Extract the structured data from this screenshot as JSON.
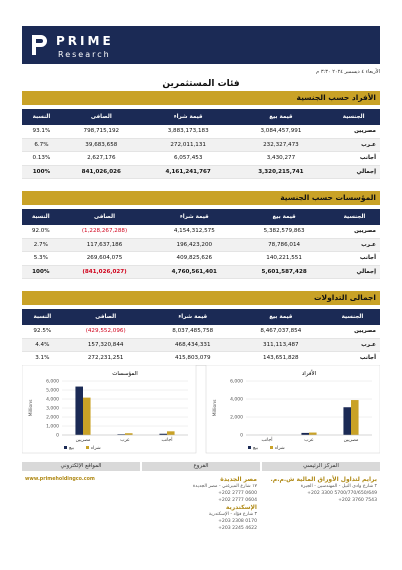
{
  "header": {
    "brand": "PRIME",
    "sub": "Research",
    "date": "الأربعاء ٤ ديسمبر ٢٠٢٤ ٣:٣٠ م"
  },
  "title": "فئات المستثمرين",
  "sections": [
    {
      "title": "الأفراد حسب الجنسية",
      "columns": [
        "الجنسية",
        "قيمة بيع",
        "قيمة شراء",
        "الصافى",
        "النسبة"
      ],
      "rows": [
        [
          "مصريين",
          "3,084,457,991",
          "3,883,173,183",
          "798,715,192",
          "93.1%"
        ],
        [
          "عـرب",
          "232,327,473",
          "272,011,131",
          "39,683,658",
          "6.7%"
        ],
        [
          "أجانب",
          "3,430,277",
          "6,057,453",
          "2,627,176",
          "0.13%"
        ],
        [
          "إجمالي",
          "3,320,215,741",
          "4,161,241,767",
          "841,026,026",
          "100%"
        ]
      ]
    },
    {
      "title": "المؤسسات حسب الجنسية",
      "columns": [
        "الجنسية",
        "قيمة بيع",
        "قيمة شراء",
        "الصافى",
        "النسبة"
      ],
      "rows": [
        [
          "مصريين",
          "5,382,579,863",
          "4,154,312,575",
          "(1,228,267,288)",
          "92.0%"
        ],
        [
          "عـرب",
          "78,786,014",
          "196,423,200",
          "117,637,186",
          "2.7%"
        ],
        [
          "أجانب",
          "140,221,551",
          "409,825,626",
          "269,604,075",
          "5.3%"
        ],
        [
          "إجمالي",
          "5,601,587,428",
          "4,760,561,401",
          "(841,026,027)",
          "100%"
        ]
      ]
    },
    {
      "title": "اجمالى التداولات",
      "columns": [
        "الجنسية",
        "قيمة بيع",
        "قيمة شراء",
        "الصافى",
        "النسبة"
      ],
      "rows": [
        [
          "مصريين",
          "8,467,037,854",
          "8,037,485,758",
          "(429,552,096)",
          "92.5%"
        ],
        [
          "عـرب",
          "311,113,487",
          "468,434,331",
          "157,320,844",
          "4.4%"
        ],
        [
          "أجانب",
          "143,651,828",
          "415,803,079",
          "272,231,251",
          "3.1%"
        ]
      ]
    }
  ],
  "charts": [
    {
      "type": "bar",
      "title": "المؤسسات",
      "y_label": "Millions",
      "categories": [
        "مصريين",
        "عرب",
        "أجانب"
      ],
      "series": [
        {
          "name": "بيع",
          "color": "#1b2a55",
          "values": [
            5382.58,
            78.79,
            140.22
          ]
        },
        {
          "name": "شراء",
          "color": "#c9a227",
          "values": [
            4154.31,
            196.42,
            409.83
          ]
        }
      ],
      "ylim": [
        0,
        6000
      ],
      "yticks": [
        0,
        {
          "value": 1000,
          "label": "1,000"
        },
        {
          "value": 2000,
          "label": "2,000"
        },
        {
          "value": 3000,
          "label": "3,000"
        },
        {
          "value": 4000,
          "label": "4,000"
        },
        {
          "value": 5000,
          "label": "5,000"
        },
        {
          "value": 6000,
          "label": "6,000"
        }
      ],
      "grid": true
    },
    {
      "type": "bar",
      "title": "الأفراد",
      "y_label": "Millions",
      "categories": [
        "أجانب",
        "عرب",
        "مصريين"
      ],
      "series": [
        {
          "name": "بيع",
          "color": "#1b2a55",
          "values": [
            3.43,
            232.33,
            3084.46
          ]
        },
        {
          "name": "شراء",
          "color": "#c9a227",
          "values": [
            6.06,
            272.01,
            3883.17
          ]
        }
      ],
      "ylim": [
        0,
        6000
      ],
      "yticks": [
        0,
        {
          "value": 2000,
          "label": "2,000"
        },
        {
          "value": 4000,
          "label": "4,000"
        },
        {
          "value": 6000,
          "label": "6,000"
        }
      ],
      "grid": true
    }
  ],
  "footer": {
    "columns": [
      {
        "heading": "المركز الرئيسي",
        "lines": [
          "برايم لتداول الأوراق المالية ش.م.م.",
          "٢ شارع وادي النيل - المهندسين - الجيزة",
          "+202 3300 5700/770/650/649",
          "+202 3760 7543"
        ]
      },
      {
        "heading": "الفروع",
        "lines": [
          "مصر الجديدة",
          "١٧ شارع الميرغني - مصر الجديدة",
          "+202 2777 0600",
          "+202 2777 0604",
          "الإسكندرية",
          "٣ شارع فؤاد - الإسكندرية",
          "+203 2308 0170",
          "+203 2245 4622"
        ]
      },
      {
        "heading": "المواقع الإلكتروني",
        "lines": [
          "www.primeholdingco.com"
        ]
      }
    ]
  }
}
